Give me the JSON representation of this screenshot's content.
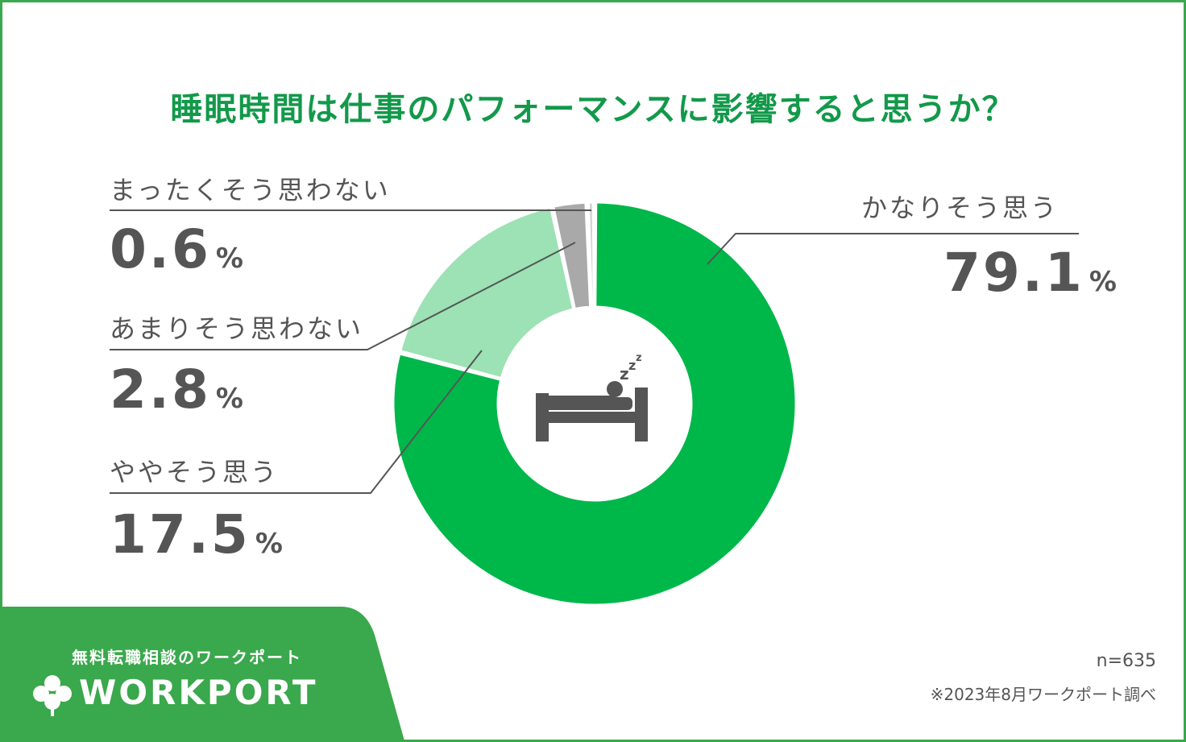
{
  "chart_data": {
    "type": "pie",
    "title": "睡眠時間は仕事のパフォーマンスに影響すると思うか？",
    "categories": [
      "かなりそう思う",
      "ややそう思う",
      "あまりそう思わない",
      "まったくそう思わない"
    ],
    "values": [
      79.1,
      17.5,
      2.8,
      0.6
    ],
    "unit": "%",
    "colors": [
      "#00b74a",
      "#9ce2b4",
      "#a9a9a9",
      "#d4d4d4"
    ],
    "center_icon": "sleeping-bed-icon",
    "value_labels": [
      "79.1",
      "17.5",
      "2.8",
      "0.6"
    ]
  },
  "footer": {
    "tagline": "無料転職相談のワークポート",
    "brand": "WORKPORT",
    "logo_icon": "clover-icon",
    "brand_color": "#3aa84c",
    "sample_size": "n=635",
    "source": "※2023年8月ワークポート調べ"
  }
}
